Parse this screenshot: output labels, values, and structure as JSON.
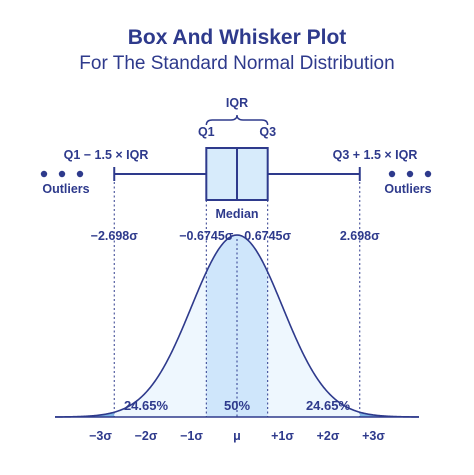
{
  "title": "Box And Whisker Plot",
  "subtitle": "For The Standard Normal Distribution",
  "colors": {
    "ink": "#2e3a8c",
    "box_fill": "#d7ebfb",
    "center_fill": "#cfe6fb",
    "inner_fill": "#eef7fe",
    "tail_fill": "#7fb5e4"
  },
  "box_plot": {
    "iqr_label": "IQR",
    "q1_label": "Q1",
    "q3_label": "Q3",
    "median_label": "Median",
    "lower_fence_label": "Q1 − 1.5 × IQR",
    "upper_fence_label": "Q3 + 1.5 × IQR",
    "outliers_left_label": "Outliers",
    "outliers_right_label": "Outliers",
    "outlier_dots_left": 3,
    "outlier_dots_right": 3
  },
  "boundaries": [
    {
      "label": "−2.698σ",
      "value": -2.698
    },
    {
      "label": "−0.6745σ",
      "value": -0.6745
    },
    {
      "label": "0.6745σ",
      "value": 0.6745
    },
    {
      "label": "2.698σ",
      "value": 2.698
    }
  ],
  "percentages": {
    "left": "24.65%",
    "center": "50%",
    "right": "24.65%"
  },
  "x_axis_ticks": [
    {
      "label": "−3σ",
      "value": -3
    },
    {
      "label": "−2σ",
      "value": -2
    },
    {
      "label": "−1σ",
      "value": -1
    },
    {
      "label": "μ",
      "value": 0
    },
    {
      "label": "+1σ",
      "value": 1
    },
    {
      "label": "+2σ",
      "value": 2
    },
    {
      "label": "+3σ",
      "value": 3
    }
  ],
  "distribution_range": [
    -4,
    4
  ]
}
